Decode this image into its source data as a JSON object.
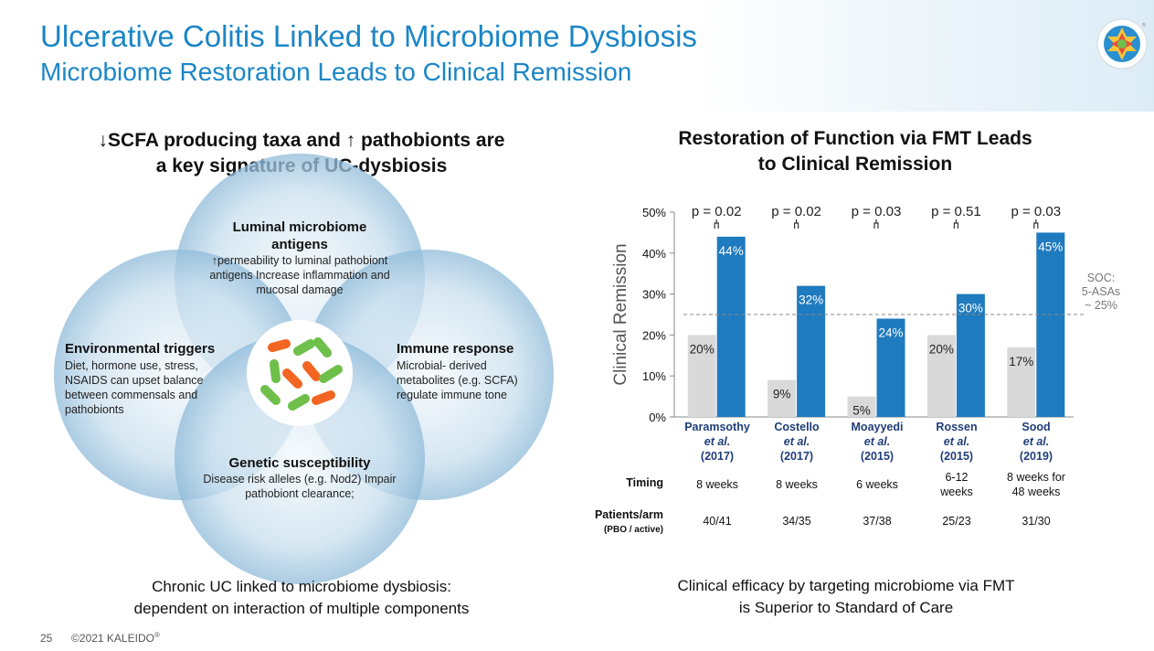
{
  "header": {
    "title": "Ulcerative Colitis Linked to Microbiome Dysbiosis",
    "subtitle": "Microbiome Restoration Leads to Clinical Remission"
  },
  "left": {
    "heading_line1": "↓SCFA producing taxa and ↑ pathobionts are",
    "heading_line2": "a key signature of UC-dysbiosis",
    "venn": {
      "top_title_1": "Luminal microbiome",
      "top_title_2": "antigens",
      "top_text_1": "↑permeability to luminal pathobiont",
      "top_text_2": "antigens Increase inflammation and",
      "top_text_3": "mucosal damage",
      "left_title": "Environmental triggers",
      "left_text_1": "Diet, hormone use, stress,",
      "left_text_2": "NSAIDS can upset balance",
      "left_text_3": "between commensals and",
      "left_text_4": "pathobionts",
      "right_title": "Immune response",
      "right_text_1": "Microbial- derived",
      "right_text_2": "metabolites (e.g. SCFA)",
      "right_text_3": "regulate immune tone",
      "bottom_title": "Genetic susceptibility",
      "bottom_text_1": "Disease risk alleles (e.g. Nod2) Impair",
      "bottom_text_2": "pathobiont clearance;"
    },
    "footer_line1": "Chronic UC linked to microbiome dysbiosis:",
    "footer_line2": "dependent on interaction of multiple components"
  },
  "right": {
    "heading_line1": "Restoration of Function via FMT Leads",
    "heading_line2": "to Clinical Remission",
    "footer_line1": "Clinical efficacy by targeting microbiome via FMT",
    "footer_line2": "is Superior to Standard of Care",
    "row_labels": {
      "timing": "Timing",
      "patients": "Patients/arm",
      "patients_sub": "(PBO / active)"
    },
    "studies": [
      {
        "name": "Paramsothy",
        "etal": "et al.",
        "year": "(2017)",
        "timing_1": "8 weeks",
        "timing_2": "",
        "patients": "40/41"
      },
      {
        "name": "Costello",
        "etal": "et al.",
        "year": "(2017)",
        "timing_1": "8 weeks",
        "timing_2": "",
        "patients": "34/35"
      },
      {
        "name": "Moayyedi",
        "etal": "et al.",
        "year": "(2015)",
        "timing_1": "6 weeks",
        "timing_2": "",
        "patients": "37/38"
      },
      {
        "name": "Rossen",
        "etal": "et al.",
        "year": "(2015)",
        "timing_1": "6-12",
        "timing_2": "weeks",
        "patients": "25/23"
      },
      {
        "name": "Sood",
        "etal": "et al.",
        "year": "(2019)",
        "timing_1": "8 weeks for",
        "timing_2": "48 weeks",
        "patients": "31/30"
      }
    ]
  },
  "chart_data": {
    "type": "bar",
    "ylabel": "Clinical Remission",
    "ylim": [
      0,
      50
    ],
    "yticks": [
      "0%",
      "10%",
      "20%",
      "30%",
      "40%",
      "50%"
    ],
    "categories": [
      "Paramsothy et al. (2017)",
      "Costello et al. (2017)",
      "Moayyedi et al. (2015)",
      "Rossen et al. (2015)",
      "Sood et al. (2019)"
    ],
    "series": [
      {
        "color": "#d9d9d9",
        "values": [
          20,
          9,
          5,
          20,
          17
        ],
        "labels": [
          "20%",
          "9%",
          "5%",
          "20%",
          "17%"
        ]
      },
      {
        "color": "#1f7bbf",
        "values": [
          44,
          32,
          24,
          30,
          45
        ],
        "labels": [
          "44%",
          "32%",
          "24%",
          "30%",
          "45%"
        ]
      }
    ],
    "p_values": [
      "p = 0.02",
      "p = 0.02",
      "p = 0.03",
      "p = 0.51",
      "p = 0.03"
    ],
    "reference_line": {
      "value": 25,
      "label_1": "SOC:",
      "label_2": "5-ASAs",
      "label_3": "~ 25%"
    },
    "grid": false
  },
  "footer": {
    "page_number": "25",
    "copyright": "©2021 KALEIDO",
    "registered": "®"
  },
  "colors": {
    "brand_blue": "#1b86c6",
    "bar_active": "#1f7bbf",
    "bar_placebo": "#d9d9d9",
    "study_name": "#1f3e78"
  }
}
